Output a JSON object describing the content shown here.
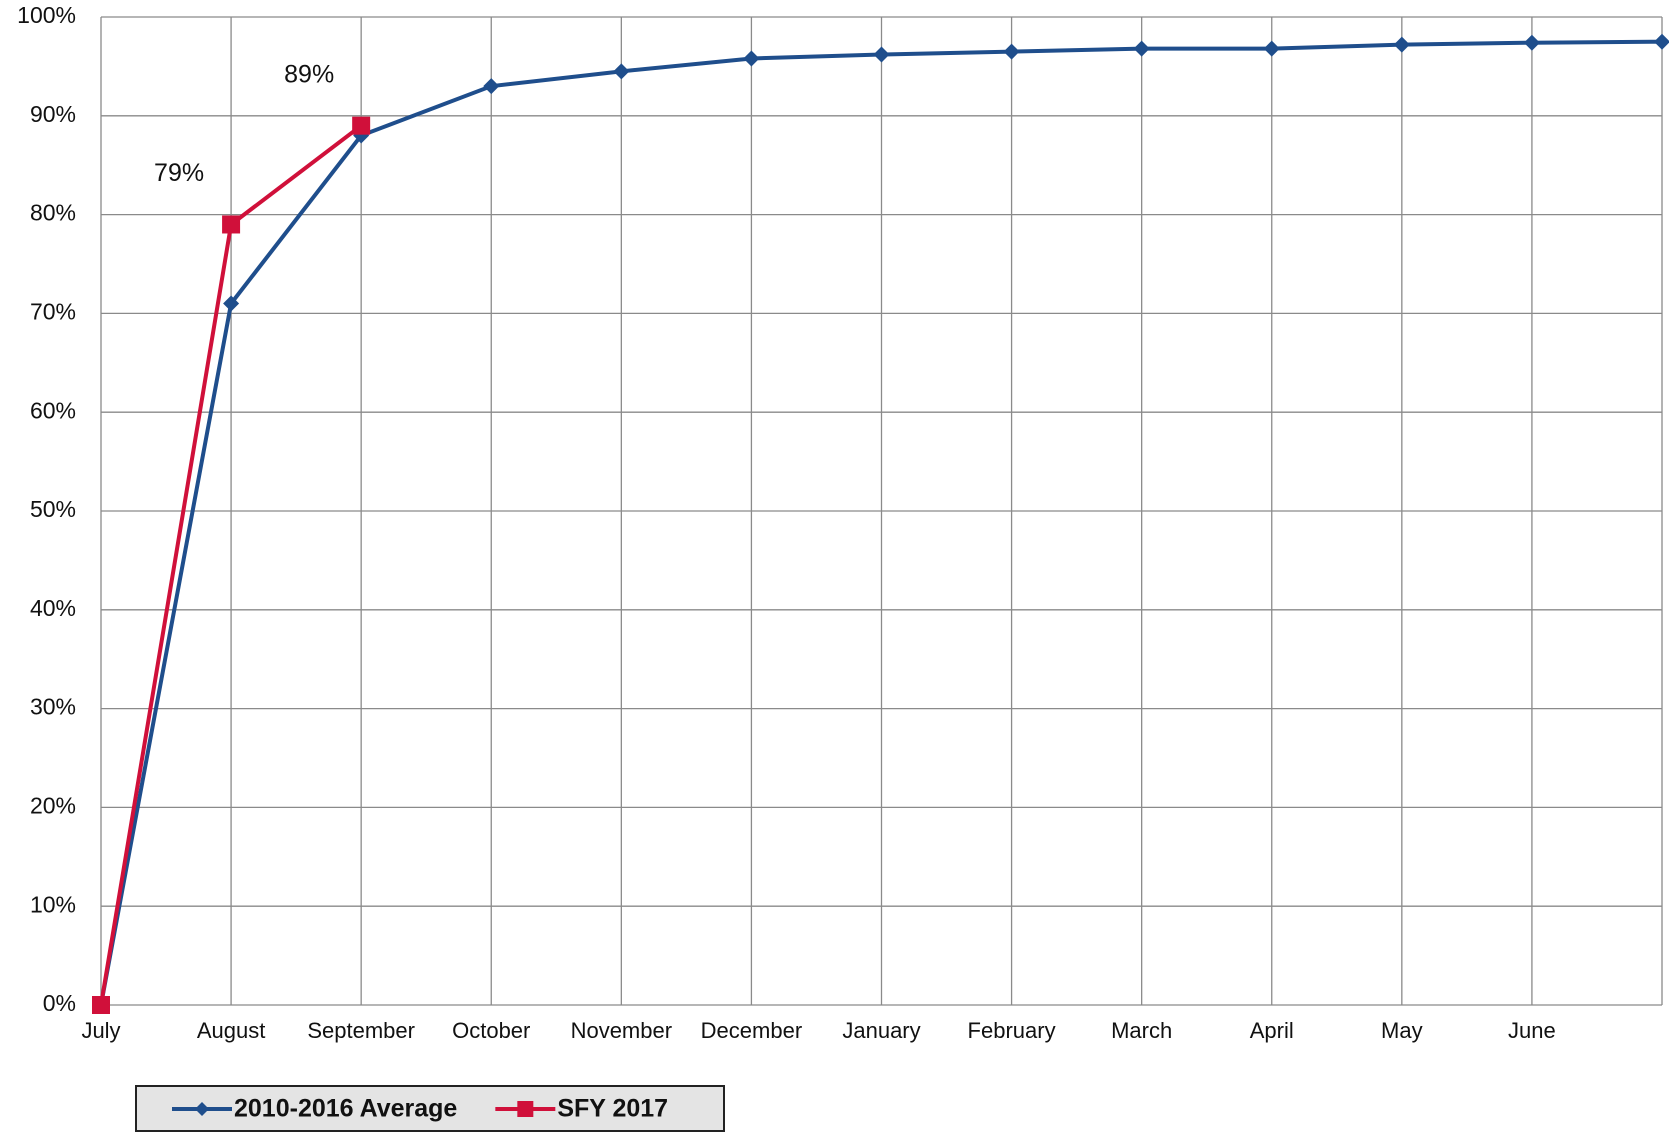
{
  "chart_data": {
    "type": "line",
    "categories": [
      "July",
      "August",
      "September",
      "October",
      "November",
      "December",
      "January",
      "February",
      "March",
      "April",
      "May",
      "June",
      null
    ],
    "series": [
      {
        "name": "2010-2016 Average",
        "color": "#1f4e8c",
        "marker": "diamond",
        "values": [
          0,
          71,
          88,
          93,
          94.5,
          95.8,
          96.2,
          96.5,
          96.8,
          96.8,
          97.2,
          97.4,
          97.5
        ]
      },
      {
        "name": "SFY 2017",
        "color": "#d0103a",
        "marker": "square",
        "values": [
          0,
          79,
          89,
          null,
          null,
          null,
          null,
          null,
          null,
          null,
          null,
          null,
          null
        ],
        "value_labels": [
          null,
          "79%",
          "89%",
          null,
          null,
          null,
          null,
          null,
          null,
          null,
          null,
          null,
          null
        ]
      }
    ],
    "ylim": [
      0,
      100
    ],
    "yticks": [
      {
        "value": 0,
        "label": "0%"
      },
      {
        "value": 10,
        "label": "10%"
      },
      {
        "value": 20,
        "label": "20%"
      },
      {
        "value": 30,
        "label": "30%"
      },
      {
        "value": 40,
        "label": "40%"
      },
      {
        "value": 50,
        "label": "50%"
      },
      {
        "value": 60,
        "label": "60%"
      },
      {
        "value": 70,
        "label": "70%"
      },
      {
        "value": 80,
        "label": "80%"
      },
      {
        "value": 90,
        "label": "90%"
      },
      {
        "value": 100,
        "label": "100%"
      }
    ],
    "grid": true,
    "legend": "bottom-left"
  }
}
